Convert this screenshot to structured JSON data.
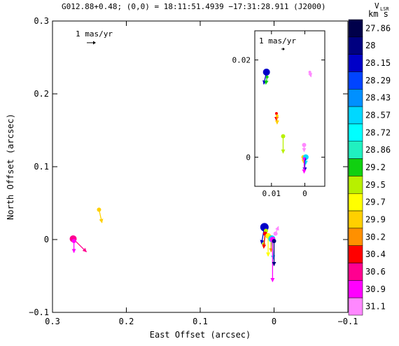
{
  "chart_data": {
    "type": "scatter",
    "title": "G012.88+0.48;  (0,0) = 18:11:51.4939     −17:31:28.911 (J2000)",
    "xlabel": "East Offset (arcsec)",
    "ylabel": "North Offset (arcsec)",
    "xlim": [
      0.3,
      -0.1
    ],
    "ylim": [
      -0.1,
      0.3
    ],
    "x_ticks": [
      "0.3",
      "0.2",
      "0.1",
      "0",
      "−0.1"
    ],
    "x_tick_values": [
      0.3,
      0.2,
      0.1,
      0,
      -0.1
    ],
    "y_ticks": [
      "−0.1",
      "0",
      "0.1",
      "0.2",
      "0.3"
    ],
    "y_tick_values": [
      -0.1,
      0,
      0.1,
      0.2,
      0.3
    ],
    "reference_arrow_label": "1 mas/yr",
    "colorbar": {
      "label_top": "V",
      "label_sub": "LSR",
      "label_unit": "km s",
      "ticks": [
        "27.86",
        "28",
        "28.15",
        "28.29",
        "28.43",
        "28.57",
        "28.72",
        "28.86",
        "29.2",
        "29.5",
        "29.7",
        "29.9",
        "30.2",
        "30.4",
        "30.6",
        "30.9",
        "31.1"
      ],
      "colors": [
        "#00004a",
        "#000080",
        "#0000c8",
        "#0044ff",
        "#0090ff",
        "#00d8ff",
        "#00ffff",
        "#20f0c0",
        "#10d010",
        "#b8f000",
        "#ffff00",
        "#ffd000",
        "#ff9000",
        "#ff0000",
        "#ff0090",
        "#ff00ff",
        "#ff88ff"
      ]
    },
    "main_points": [
      {
        "x": 0.272,
        "y": 0.001,
        "color": "#ff0090",
        "size": 5,
        "dx": -0.018,
        "dy": -0.018
      },
      {
        "x": 0.271,
        "y": -0.002,
        "color": "#ff00ff",
        "size": 3,
        "dx": 0.0,
        "dy": -0.016
      },
      {
        "x": 0.237,
        "y": 0.041,
        "color": "#ffd000",
        "size": 3,
        "dx": -0.004,
        "dy": -0.018
      },
      {
        "x": 0.013,
        "y": 0.017,
        "color": "#0000c8",
        "size": 6,
        "dx": 0.004,
        "dy": -0.023
      },
      {
        "x": 0.011,
        "y": 0.012,
        "color": "#b8f000",
        "size": 3,
        "dx": 0.004,
        "dy": -0.022
      },
      {
        "x": 0.012,
        "y": 0.008,
        "color": "#ff0000",
        "size": 3,
        "dx": 0.002,
        "dy": -0.02
      },
      {
        "x": 0.008,
        "y": 0.005,
        "color": "#ffff00",
        "size": 4,
        "dx": 0.0,
        "dy": -0.028
      },
      {
        "x": 0.004,
        "y": 0.003,
        "color": "#ff9000",
        "size": 3,
        "dx": 0.0,
        "dy": -0.02
      },
      {
        "x": 0.003,
        "y": 0.001,
        "color": "#00d8ff",
        "size": 5,
        "dx": -0.002,
        "dy": -0.028
      },
      {
        "x": 0.002,
        "y": 0.0,
        "color": "#ff00ff",
        "size": 4,
        "dx": 0.0,
        "dy": -0.058
      },
      {
        "x": 0.0,
        "y": -0.002,
        "color": "#000080",
        "size": 3,
        "dx": 0.0,
        "dy": -0.034
      },
      {
        "x": -0.002,
        "y": 0.008,
        "color": "#ff88ff",
        "size": 3,
        "dx": -0.004,
        "dy": 0.01
      }
    ],
    "inset": {
      "xlim": [
        0.015,
        -0.006
      ],
      "ylim": [
        -0.006,
        0.026
      ],
      "x_ticks": [
        "0.01",
        "0"
      ],
      "x_tick_values": [
        0.01,
        0
      ],
      "y_ticks": [
        "0",
        "0.02"
      ],
      "y_tick_values": [
        0,
        0.02
      ],
      "points": [
        {
          "x": 0.0115,
          "y": 0.0175,
          "color": "#0000c8",
          "size": 5,
          "dx": 0.0008,
          "dy": -0.0025
        },
        {
          "x": 0.0113,
          "y": 0.0165,
          "color": "#10d010",
          "size": 2,
          "dx": 0.0004,
          "dy": -0.0015
        },
        {
          "x": 0.0085,
          "y": 0.009,
          "color": "#ff0000",
          "size": 2,
          "dx": 0.0,
          "dy": -0.0015
        },
        {
          "x": 0.0083,
          "y": 0.0085,
          "color": "#ffd000",
          "size": 2,
          "dx": 0.0,
          "dy": -0.0017
        },
        {
          "x": 0.0065,
          "y": 0.0043,
          "color": "#b8f000",
          "size": 3,
          "dx": 0.0,
          "dy": -0.0035
        },
        {
          "x": 0.0002,
          "y": 0.0025,
          "color": "#ff88ff",
          "size": 3,
          "dx": 0.0,
          "dy": -0.0014
        },
        {
          "x": 0.0004,
          "y": 0.0,
          "color": "#ffd000",
          "size": 3,
          "dx": 0.0,
          "dy": -0.0012
        },
        {
          "x": -0.0003,
          "y": 0.0,
          "color": "#00d8ff",
          "size": 4,
          "dx": 0.0,
          "dy": -0.0015
        },
        {
          "x": 0.0,
          "y": -0.0004,
          "color": "#0000c8",
          "size": 2,
          "dx": 0.0,
          "dy": -0.0025
        },
        {
          "x": 0.0002,
          "y": -0.0003,
          "color": "#ff00ff",
          "size": 2,
          "dx": 0.0,
          "dy": -0.003
        },
        {
          "x": -0.0015,
          "y": 0.0175,
          "color": "#ff88ff",
          "size": 2,
          "dx": -0.0004,
          "dy": -0.001
        }
      ]
    }
  }
}
